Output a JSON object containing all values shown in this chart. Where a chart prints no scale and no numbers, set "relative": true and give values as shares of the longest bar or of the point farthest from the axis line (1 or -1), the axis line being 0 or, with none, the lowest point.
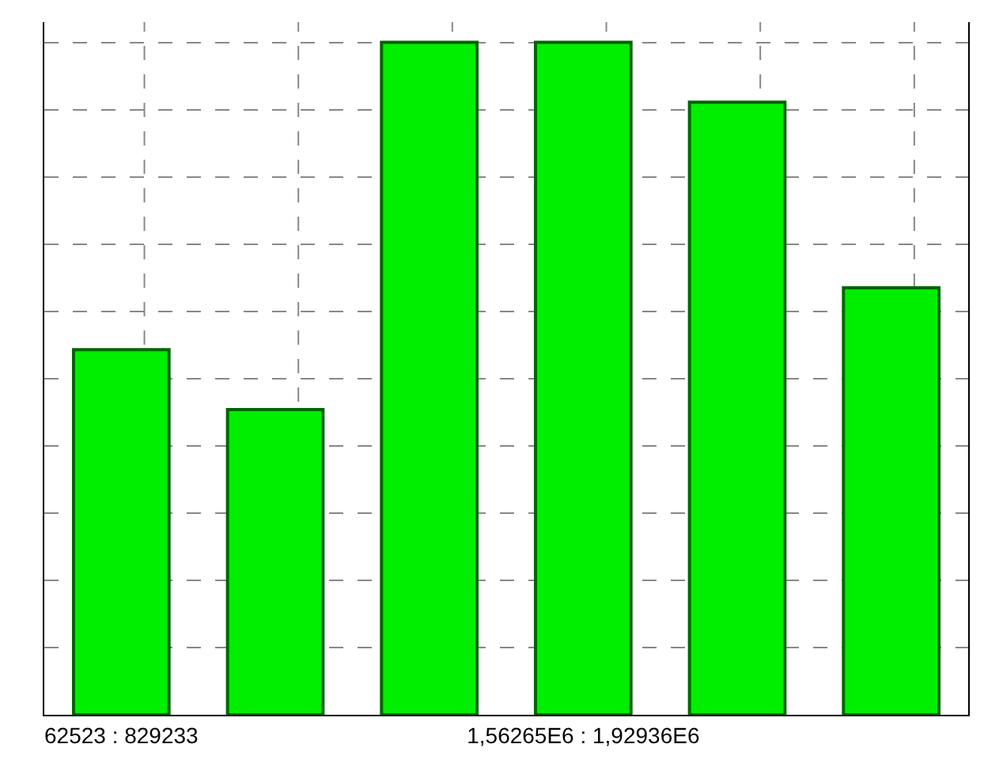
{
  "chart_data": {
    "type": "bar",
    "relative": true,
    "categories": [
      "62523 : 829233",
      null,
      null,
      "1,56265E6 : 1,92936E6",
      null,
      null
    ],
    "values": [
      0.543,
      0.454,
      1,
      1,
      0.911,
      0.635
    ],
    "color": "#00ee00",
    "grid": true,
    "legend": false
  }
}
